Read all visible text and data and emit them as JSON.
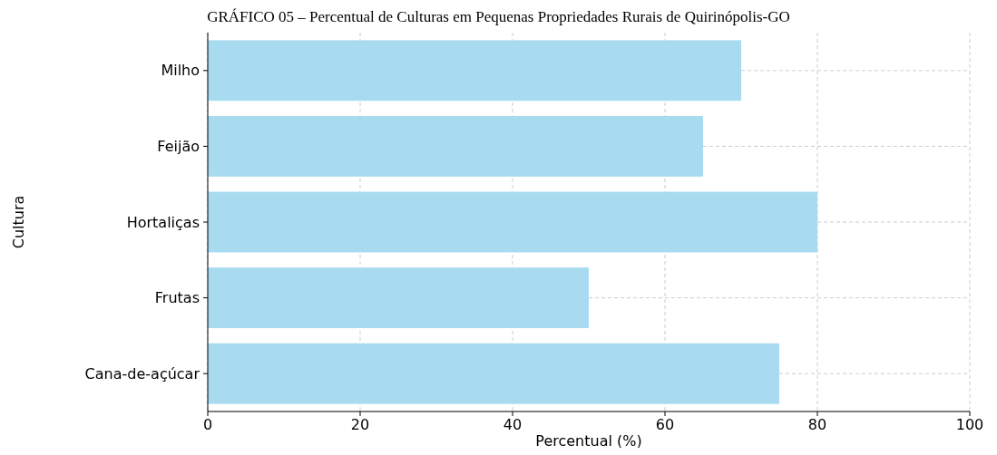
{
  "chart_data": {
    "type": "bar",
    "orientation": "horizontal",
    "title": "GRÁFICO 05 – Percentual de Culturas em Pequenas Propriedades Rurais de Quirinópolis-GO",
    "xlabel": "Percentual (%)",
    "ylabel": "Cultura",
    "categories": [
      "Milho",
      "Feijão",
      "Hortaliças",
      "Frutas",
      "Cana-de-açúcar"
    ],
    "values": [
      70,
      65,
      80,
      50,
      75
    ],
    "color": "#a8dbef",
    "xlim": [
      0,
      100
    ],
    "xticks": [
      0,
      20,
      40,
      60,
      80,
      100
    ],
    "grid": true
  }
}
